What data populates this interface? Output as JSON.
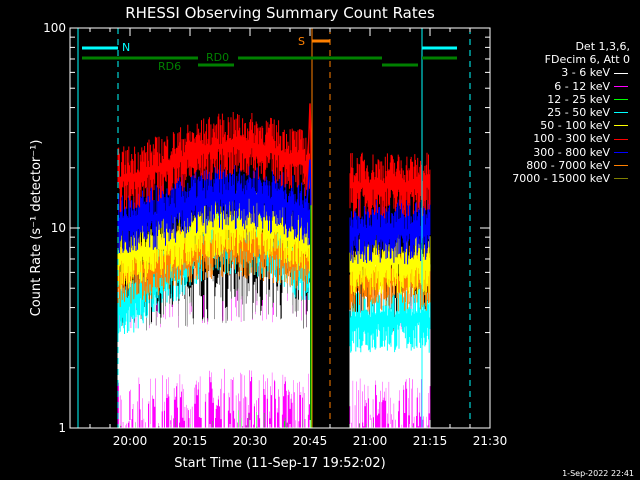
{
  "chart_data": {
    "type": "line",
    "title": "RHESSI Observing Summary Count Rates",
    "xlabel": "Start Time (11-Sep-17 19:52:02)",
    "ylabel": "Count Rate (s⁻¹ detector⁻¹)",
    "yscale": "log",
    "ylim": [
      1,
      100
    ],
    "xlim_minutes": [
      -7,
      98
    ],
    "x_ticks": [
      {
        "label": "20:00",
        "minute": 8
      },
      {
        "label": "20:15",
        "minute": 23
      },
      {
        "label": "20:30",
        "minute": 38
      },
      {
        "label": "20:45",
        "minute": 53
      },
      {
        "label": "21:00",
        "minute": 68
      },
      {
        "label": "21:15",
        "minute": 83
      },
      {
        "label": "21:30",
        "minute": 98
      }
    ],
    "y_ticks": [
      {
        "label": "1",
        "value": 1
      },
      {
        "label": "10",
        "value": 10
      },
      {
        "label": "100",
        "value": 100
      }
    ],
    "legend_header": [
      "Det 1,3,6,",
      "FDecim 6, Att 0"
    ],
    "series": [
      {
        "name": "3 - 6 keV",
        "color": "#ffffff",
        "level": 3.2,
        "peak": 3.6,
        "segment": "all"
      },
      {
        "name": "6 - 12 keV",
        "color": "#ff00ff",
        "level": 1.9,
        "peak": 2.2,
        "segment": "all"
      },
      {
        "name": "12 - 25 keV",
        "color": "#00ff00",
        "level": 1.4,
        "peak": 1.6,
        "segment": "all"
      },
      {
        "name": "25 - 50 keV",
        "color": "#00ffff",
        "level": 3.6,
        "peak": 9.0,
        "segment": "all"
      },
      {
        "name": "50 - 100 keV",
        "color": "#ffff00",
        "level": 7.0,
        "peak": 11.0,
        "segment": "all"
      },
      {
        "name": "100 - 300 keV",
        "color": "#ff0000",
        "level": 17.0,
        "peak": 27.0,
        "segment": "all"
      },
      {
        "name": "300 - 800 keV",
        "color": "#0000ff",
        "level": 10.0,
        "peak": 15.0,
        "segment": "all"
      },
      {
        "name": "800 - 7000 keV",
        "color": "#ff8000",
        "level": 5.8,
        "peak": 8.5,
        "segment": "all"
      },
      {
        "name": "7000 - 15000 keV",
        "color": "#808000",
        "level": 1.0,
        "peak": 1.0,
        "segment": "all"
      }
    ],
    "data_segments_minutes": [
      [
        5,
        53
      ],
      [
        63,
        83
      ]
    ],
    "flare_peak": {
      "minute": 53,
      "value": 42
    },
    "annotations": {
      "night_label": "N",
      "saa_label": "S",
      "rd0_label": "RD0",
      "rd6_label": "RD6"
    }
  },
  "footer_timestamp": "1-Sep-2022 22:41"
}
